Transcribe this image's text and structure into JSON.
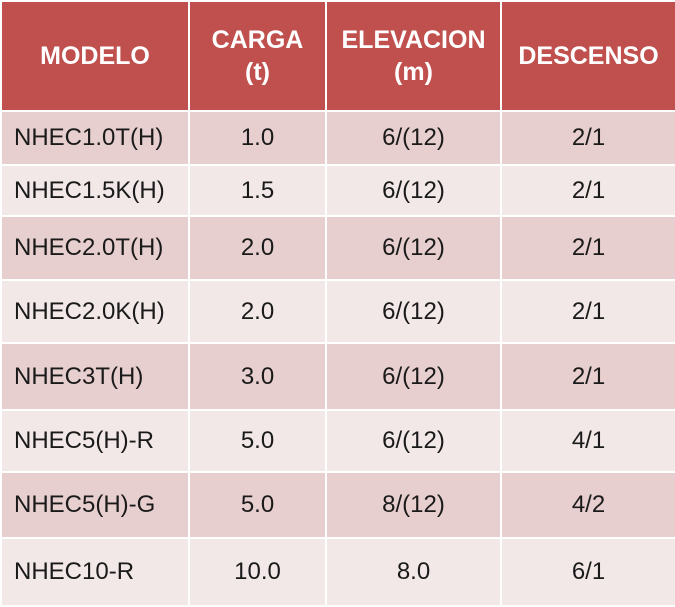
{
  "colors": {
    "header_bg": "#c0504d",
    "header_text": "#ffffff",
    "row_odd_bg": "#e8cfcf",
    "row_even_bg": "#f3e8e8",
    "cell_text": "#1a1a1a",
    "grid_lines": "#ffffff"
  },
  "table": {
    "headers": [
      {
        "line1": "MODELO",
        "line2": ""
      },
      {
        "line1": "CARGA",
        "line2": "(t)"
      },
      {
        "line1": "ELEVACION",
        "line2": "(m)"
      },
      {
        "line1": "DESCENSO",
        "line2": ""
      }
    ],
    "rows": [
      {
        "modelo": "NHEC1.0T(H)",
        "carga": "1.0",
        "elevacion": "6/(12)",
        "descenso": "2/1"
      },
      {
        "modelo": "NHEC1.5K(H)",
        "carga": "1.5",
        "elevacion": "6/(12)",
        "descenso": "2/1"
      },
      {
        "modelo": "NHEC2.0T(H)",
        "carga": "2.0",
        "elevacion": "6/(12)",
        "descenso": "2/1"
      },
      {
        "modelo": "NHEC2.0K(H)",
        "carga": "2.0",
        "elevacion": "6/(12)",
        "descenso": "2/1"
      },
      {
        "modelo": "NHEC3T(H)",
        "carga": "3.0",
        "elevacion": "6/(12)",
        "descenso": "2/1"
      },
      {
        "modelo": "NHEC5(H)-R",
        "carga": "5.0",
        "elevacion": "6/(12)",
        "descenso": "4/1"
      },
      {
        "modelo": "NHEC5(H)-G",
        "carga": "5.0",
        "elevacion": "8/(12)",
        "descenso": "4/2"
      },
      {
        "modelo": "NHEC10-R",
        "carga": "10.0",
        "elevacion": "8.0",
        "descenso": "6/1"
      }
    ]
  }
}
